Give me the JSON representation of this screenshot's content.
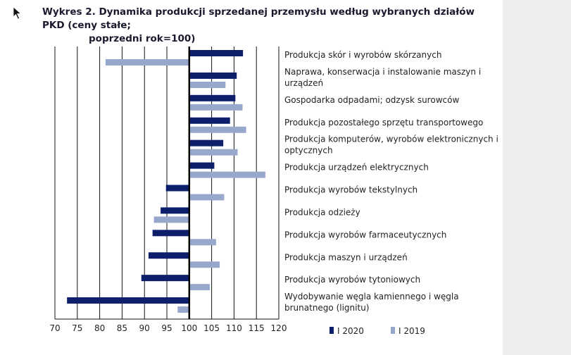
{
  "chart_data": {
    "type": "bar",
    "orientation": "horizontal",
    "title_line1": "Wykres 2. Dynamika produkcji sprzedanej przemysłu według wybranych działów PKD (ceny stałe;",
    "title_line2": "poprzedni rok=100)",
    "baseline": 100,
    "xlim": [
      70,
      120
    ],
    "xticks": [
      "70",
      "75",
      "80",
      "85",
      "90",
      "95",
      "100",
      "105",
      "110",
      "115",
      "120"
    ],
    "categories": [
      [
        "Produkcja skór i wyrobów skórzanych"
      ],
      [
        "Naprawa, konserwacja i instalowanie maszyn i",
        "urządzeń"
      ],
      [
        "Gospodarka odpadami; odzysk surowców"
      ],
      [
        "Produkcja pozostałego sprzętu transportowego"
      ],
      [
        "Produkcja komputerów, wyrobów elektronicznych i",
        "optycznych"
      ],
      [
        "Produkcja urządzeń elektrycznych"
      ],
      [
        "Produkcja wyrobów tekstylnych"
      ],
      [
        "Produkcja odzieży"
      ],
      [
        "Produkcja wyrobów farmaceutycznych"
      ],
      [
        "Produkcja maszyn i urządzeń"
      ],
      [
        "Produkcja wyrobów tytoniowych"
      ],
      [
        "Wydobywanie węgla kamiennego i węgla",
        "brunatnego (lignitu)"
      ]
    ],
    "series": [
      {
        "name": "I 2020",
        "color": "#0d1f6b",
        "values": [
          112.0,
          110.6,
          110.3,
          109.1,
          107.6,
          105.6,
          94.8,
          93.6,
          91.8,
          90.9,
          89.3,
          72.7
        ]
      },
      {
        "name": "I 2019",
        "color": "#98a8cc",
        "values": [
          81.3,
          108.1,
          111.9,
          112.7,
          110.8,
          117.0,
          107.8,
          92.1,
          106.0,
          106.8,
          104.6,
          97.4
        ]
      }
    ],
    "grid": true
  }
}
